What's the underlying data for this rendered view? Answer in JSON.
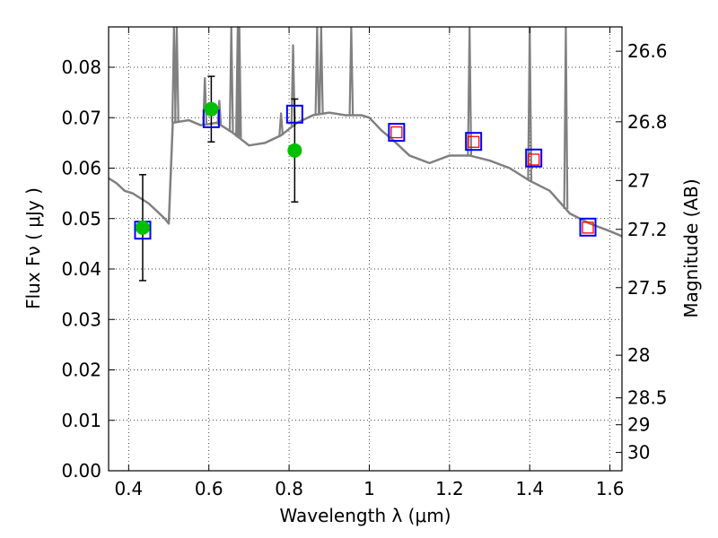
{
  "chart_data": {
    "type": "scatter",
    "xlabel": "Wavelength  λ (μm)",
    "ylabel": "Flux  Fν  ( μJy )",
    "ylabel_right": "Magnitude (AB)",
    "xlim": [
      0.35,
      1.63
    ],
    "ylim": [
      0.0,
      0.088
    ],
    "grid": true,
    "x_ticks": [
      0.4,
      0.6,
      0.8,
      1.0,
      1.2,
      1.4,
      1.6
    ],
    "x_tick_labels": [
      "0.4",
      "0.6",
      "0.8",
      "1",
      "1.2",
      "1.4",
      "1.6"
    ],
    "y_ticks": [
      0.0,
      0.01,
      0.02,
      0.03,
      0.04,
      0.05,
      0.06,
      0.07,
      0.08
    ],
    "y_tick_labels": [
      "0.00",
      "0.01",
      "0.02",
      "0.03",
      "0.04",
      "0.05",
      "0.06",
      "0.07",
      "0.08"
    ],
    "mag_ticks": [
      26.6,
      26.8,
      27,
      27.2,
      27.5,
      28,
      28.5,
      29,
      30
    ],
    "mag_tick_labels": [
      "26.6",
      "26.8",
      "27",
      "27.2",
      "27.5",
      "28",
      "28.5",
      "29",
      "30"
    ],
    "colors": {
      "model": "#808080",
      "observed": "#00c000",
      "model_blue": "#0000ff",
      "model_red": "#ff0000",
      "errorbar": "#000000"
    },
    "model_spectrum": {
      "x": [
        0.35,
        0.37,
        0.39,
        0.41,
        0.43,
        0.45,
        0.47,
        0.49,
        0.5,
        0.51,
        0.55,
        0.58,
        0.62,
        0.66,
        0.7,
        0.74,
        0.78,
        0.82,
        0.86,
        0.9,
        0.94,
        0.98,
        1.0,
        1.03,
        1.06,
        1.1,
        1.15,
        1.2,
        1.25,
        1.3,
        1.35,
        1.4,
        1.45,
        1.5,
        1.55,
        1.6,
        1.63
      ],
      "y": [
        0.058,
        0.057,
        0.0555,
        0.055,
        0.054,
        0.053,
        0.0515,
        0.05,
        0.049,
        0.069,
        0.0695,
        0.0685,
        0.069,
        0.067,
        0.0645,
        0.065,
        0.0665,
        0.069,
        0.0705,
        0.071,
        0.0705,
        0.0705,
        0.07,
        0.0675,
        0.0655,
        0.0625,
        0.061,
        0.0625,
        0.0625,
        0.0615,
        0.06,
        0.0575,
        0.0555,
        0.051,
        0.049,
        0.0475,
        0.0465
      ]
    },
    "model_spikes": [
      {
        "x": 0.513,
        "top": 0.088
      },
      {
        "x": 0.52,
        "top": 0.088
      },
      {
        "x": 0.59,
        "top": 0.078
      },
      {
        "x": 0.626,
        "top": 0.0735
      },
      {
        "x": 0.656,
        "top": 0.088
      },
      {
        "x": 0.672,
        "top": 0.088
      },
      {
        "x": 0.676,
        "top": 0.088
      },
      {
        "x": 0.78,
        "top": 0.071
      },
      {
        "x": 0.81,
        "top": 0.0845
      },
      {
        "x": 0.87,
        "top": 0.088
      },
      {
        "x": 0.88,
        "top": 0.088
      },
      {
        "x": 0.955,
        "top": 0.088
      },
      {
        "x": 1.25,
        "top": 0.088
      },
      {
        "x": 1.4,
        "top": 0.088
      },
      {
        "x": 1.49,
        "top": 0.088
      }
    ],
    "observed_points": [
      {
        "x": 0.435,
        "y": 0.0482,
        "yerr": 0.0105
      },
      {
        "x": 0.606,
        "y": 0.0717,
        "yerr": 0.0065
      },
      {
        "x": 0.814,
        "y": 0.0635,
        "yerr": 0.0102
      }
    ],
    "model_blue_squares": [
      {
        "x": 0.435,
        "y": 0.0477
      },
      {
        "x": 0.606,
        "y": 0.0698
      },
      {
        "x": 0.814,
        "y": 0.0707
      },
      {
        "x": 1.068,
        "y": 0.0671
      },
      {
        "x": 1.26,
        "y": 0.0653
      },
      {
        "x": 1.41,
        "y": 0.062
      },
      {
        "x": 1.545,
        "y": 0.0483
      }
    ],
    "model_red_squares": [
      {
        "x": 1.068,
        "y": 0.0671
      },
      {
        "x": 1.26,
        "y": 0.0652
      },
      {
        "x": 1.41,
        "y": 0.0617
      },
      {
        "x": 1.545,
        "y": 0.0482
      }
    ]
  }
}
